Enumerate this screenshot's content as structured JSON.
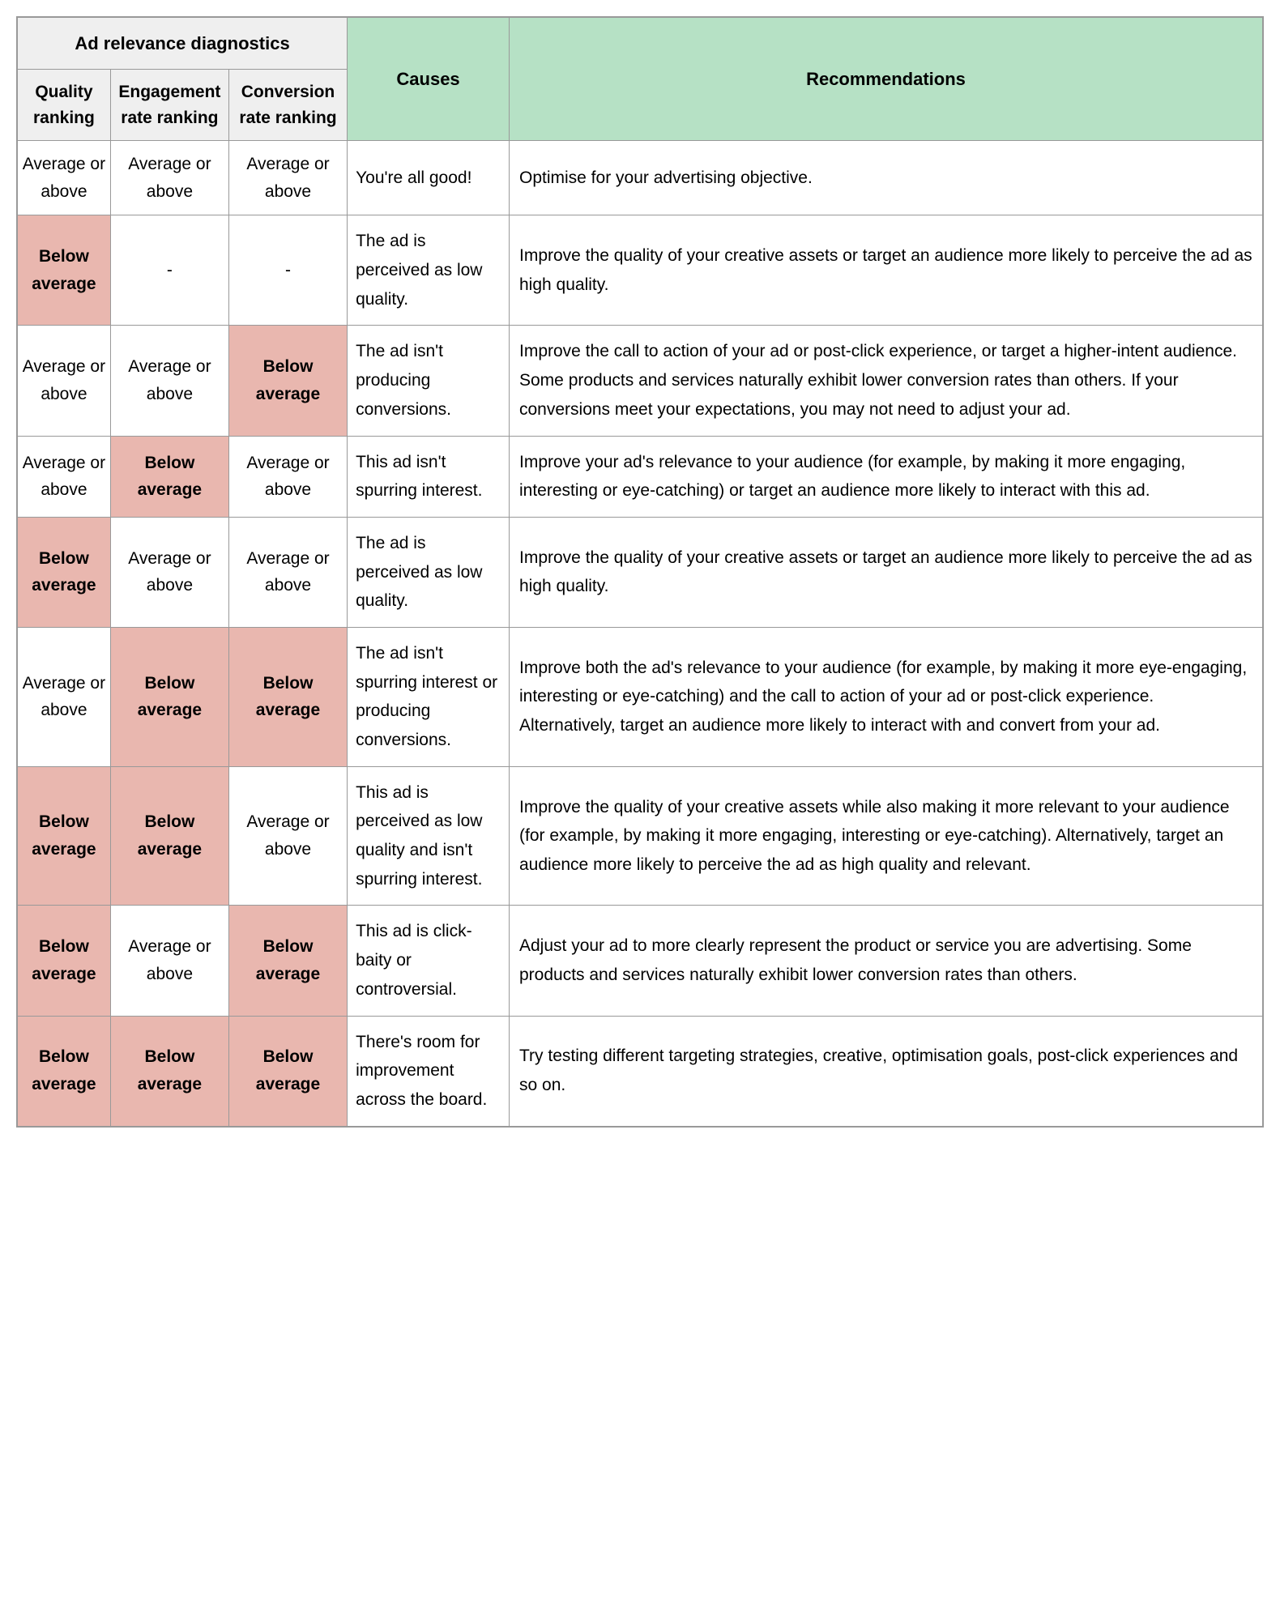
{
  "table": {
    "type": "table",
    "background_color": "#ffffff",
    "border_color": "#999999",
    "header_bg_color": "#efefef",
    "green_header_bg_color": "#b6e1c5",
    "below_avg_bg_color": "#e9b7af",
    "font_family": "Helvetica, Arial, sans-serif",
    "header_fontsize": 22,
    "subheader_fontsize": 21,
    "cell_fontsize": 21,
    "column_widths_percent": [
      7.5,
      9.5,
      9.5,
      13,
      60.5
    ],
    "headers": {
      "group_header": "Ad relevance diagnostics",
      "sub_headers": {
        "quality": "Quality ranking",
        "engagement": "Engagement rate ranking",
        "conversion": "Conversion rate ranking"
      },
      "causes": "Causes",
      "recommendations": "Recommendations"
    },
    "labels": {
      "avg_or_above": "Average or above",
      "below_average": "Below average",
      "dash": "-"
    },
    "rows": [
      {
        "quality": "Average or above",
        "quality_below": false,
        "engagement": "Average or above",
        "engagement_below": false,
        "conversion": "Average or above",
        "conversion_below": false,
        "cause": "You're all good!",
        "recommendation": "Optimise for your advertising objective."
      },
      {
        "quality": "Below average",
        "quality_below": true,
        "engagement": "-",
        "engagement_below": false,
        "conversion": "-",
        "conversion_below": false,
        "cause": "The ad is perceived as low quality.",
        "recommendation": "Improve the quality of your creative assets or target an audience more likely to perceive the ad as high quality."
      },
      {
        "quality": "Average or above",
        "quality_below": false,
        "engagement": "Average or above",
        "engagement_below": false,
        "conversion": "Below average",
        "conversion_below": true,
        "cause": "The ad isn't producing conversions.",
        "recommendation": "Improve the call to action of your ad or post-click experience, or target a higher-intent audience. Some products and services naturally exhibit lower conversion rates than others. If your conversions meet your expectations, you may not need to adjust your ad."
      },
      {
        "quality": "Average or above",
        "quality_below": false,
        "engagement": "Below average",
        "engagement_below": true,
        "conversion": "Average or above",
        "conversion_below": false,
        "cause": "This ad isn't spurring interest.",
        "recommendation": "Improve your ad's relevance to your audience (for example, by making it more engaging, interesting or eye-catching) or target an audience more likely to interact with this ad."
      },
      {
        "quality": "Below average",
        "quality_below": true,
        "engagement": "Average or above",
        "engagement_below": false,
        "conversion": "Average or above",
        "conversion_below": false,
        "cause": "The ad is perceived as low quality.",
        "recommendation": "Improve the quality of your creative assets or target an audience more likely to perceive the ad as high quality."
      },
      {
        "quality": "Average or above",
        "quality_below": false,
        "engagement": "Below average",
        "engagement_below": true,
        "conversion": "Below average",
        "conversion_below": true,
        "cause": "The ad isn't spurring interest or producing conversions.",
        "recommendation": "Improve both the ad's relevance to your audience (for example, by making it more eye-engaging, interesting or eye-catching) and the call to action of your ad or post-click experience. Alternatively, target an audience more likely to interact with and convert from your ad."
      },
      {
        "quality": "Below average",
        "quality_below": true,
        "engagement": "Below average",
        "engagement_below": true,
        "conversion": "Average or above",
        "conversion_below": false,
        "cause": "This ad is perceived as low quality and isn't spurring interest.",
        "recommendation": "Improve the quality of your creative assets while also making it more relevant to your audience (for example, by making it more engaging, interesting or eye-catching). Alternatively, target an audience more likely to perceive the ad as high quality and relevant."
      },
      {
        "quality": "Below average",
        "quality_below": true,
        "engagement": "Average or above",
        "engagement_below": false,
        "conversion": "Below average",
        "conversion_below": true,
        "cause": "This ad is click-baity or controversial.",
        "recommendation": "Adjust your ad to more clearly represent the product or service you are advertising. Some products and services naturally exhibit lower conversion rates than others."
      },
      {
        "quality": "Below average",
        "quality_below": true,
        "engagement": "Below average",
        "engagement_below": true,
        "conversion": "Below average",
        "conversion_below": true,
        "cause": "There's room for improvement across the board.",
        "recommendation": "Try testing different targeting strategies, creative, optimisation goals, post-click experiences and so on."
      }
    ]
  }
}
